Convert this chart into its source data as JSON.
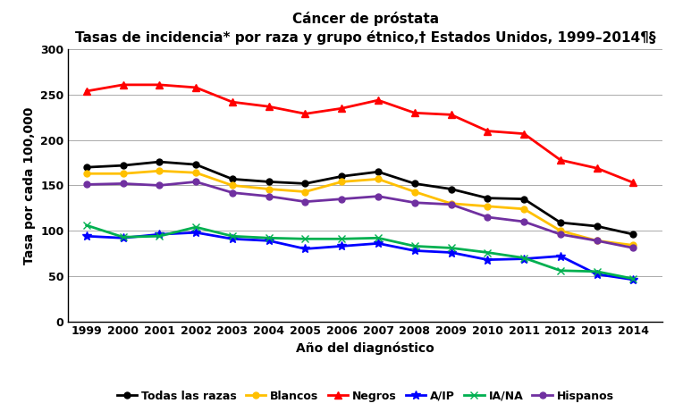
{
  "title_line1": "Cáncer de próstata",
  "title_line2": "Tasas de incidencia* por raza y grupo étnico,† Estados Unidos, 1999–2014¶§",
  "xlabel": "Año del diagnóstico",
  "ylabel": "Tasa por cada 100,000",
  "years": [
    1999,
    2000,
    2001,
    2002,
    2003,
    2004,
    2005,
    2006,
    2007,
    2008,
    2009,
    2010,
    2011,
    2012,
    2013,
    2014
  ],
  "series": [
    {
      "label": "Todas las razas",
      "color": "#000000",
      "marker": "o",
      "linewidth": 2.0,
      "markersize": 5,
      "values": [
        170,
        172,
        176,
        173,
        157,
        154,
        152,
        160,
        165,
        152,
        146,
        136,
        135,
        109,
        105,
        96
      ]
    },
    {
      "label": "Blancos",
      "color": "#FFC000",
      "marker": "o",
      "linewidth": 2.0,
      "markersize": 5,
      "values": [
        163,
        163,
        166,
        164,
        150,
        146,
        143,
        154,
        157,
        143,
        130,
        127,
        124,
        100,
        89,
        84
      ]
    },
    {
      "label": "Negros",
      "color": "#FF0000",
      "marker": "^",
      "linewidth": 2.0,
      "markersize": 6,
      "values": [
        254,
        261,
        261,
        258,
        242,
        237,
        229,
        235,
        244,
        230,
        228,
        210,
        207,
        178,
        169,
        153
      ]
    },
    {
      "label": "A/IP",
      "color": "#0000FF",
      "marker": "*",
      "linewidth": 2.0,
      "markersize": 7,
      "values": [
        94,
        92,
        96,
        98,
        91,
        89,
        80,
        83,
        86,
        78,
        76,
        68,
        69,
        72,
        52,
        46
      ]
    },
    {
      "label": "IA/NA",
      "color": "#00B050",
      "marker": "x",
      "linewidth": 2.0,
      "markersize": 6,
      "values": [
        106,
        93,
        94,
        104,
        94,
        92,
        91,
        91,
        92,
        83,
        81,
        76,
        70,
        56,
        55,
        47
      ]
    },
    {
      "label": "Hispanos",
      "color": "#7030A0",
      "marker": "o",
      "linewidth": 2.0,
      "markersize": 5,
      "values": [
        151,
        152,
        150,
        154,
        142,
        138,
        132,
        135,
        138,
        131,
        129,
        115,
        110,
        96,
        89,
        81
      ]
    }
  ],
  "ylim": [
    0,
    300
  ],
  "yticks": [
    0,
    50,
    100,
    150,
    200,
    250,
    300
  ],
  "background_color": "#ffffff",
  "grid_color": "#aaaaaa",
  "title_fontsize": 12,
  "subtitle_fontsize": 11,
  "tick_fontsize": 9,
  "label_fontsize": 10,
  "legend_fontsize": 9
}
